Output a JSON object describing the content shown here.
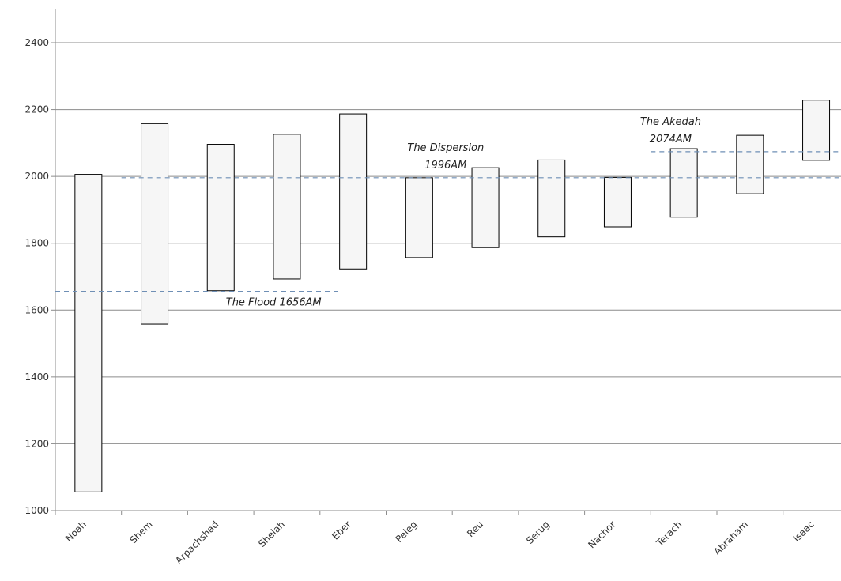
{
  "chart_data": {
    "type": "bar",
    "subtype": "floating",
    "title": "",
    "xlabel": "",
    "ylabel": "",
    "ylim": [
      1000,
      2400
    ],
    "yticks": [
      1000,
      1200,
      1400,
      1600,
      1800,
      2000,
      2200,
      2400
    ],
    "grid": "horizontal",
    "legend": "none",
    "bar_fill": "#f6f6f6",
    "bar_stroke": "#000000",
    "categories": [
      "Noah",
      "Shem",
      "Arpachshad",
      "Shelah",
      "Eber",
      "Peleg",
      "Reu",
      "Serug",
      "Nachor",
      "Terach",
      "Abraham",
      "Isaac"
    ],
    "series": [
      {
        "start": [
          1056,
          1558,
          1658,
          1693,
          1723,
          1757,
          1787,
          1819,
          1849,
          1878,
          1948,
          2048
        ],
        "end": [
          2006,
          2158,
          2096,
          2126,
          2187,
          1996,
          2026,
          2049,
          1997,
          2083,
          2123,
          2228
        ]
      }
    ],
    "annotations": [
      {
        "lines": [
          "The Flood 1656AM"
        ],
        "y": 1656,
        "x_from": -0.5,
        "x_to": 3.8,
        "label_x": 2.8,
        "color": "#6f8fb5"
      },
      {
        "lines": [
          "The Dispersion",
          "1996AM"
        ],
        "y": 1996,
        "x_from": 0.5,
        "x_to": 11.5,
        "label_x": 5.4,
        "color": "#6f8fb5"
      },
      {
        "lines": [
          "The Akedah",
          "2074AM"
        ],
        "y": 2074,
        "x_from": 8.5,
        "x_to": 11.9,
        "label_x": 8.8,
        "color": "#6f8fb5"
      }
    ]
  }
}
